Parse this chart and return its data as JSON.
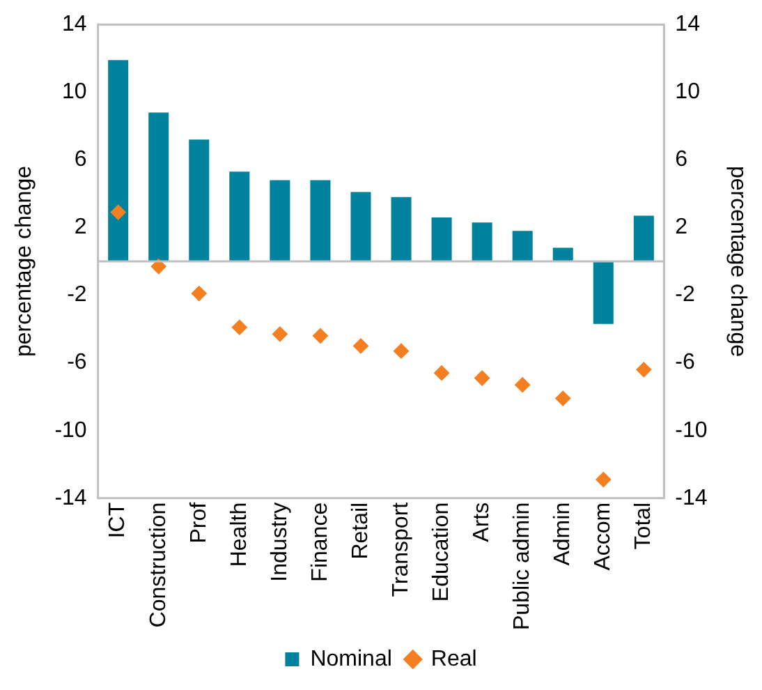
{
  "chart_data": {
    "type": "bar",
    "ylabel": "percentage change",
    "y2label": "percentage change",
    "categories": [
      "ICT",
      "Construction",
      "Prof",
      "Health",
      "Industry",
      "Finance",
      "Retail",
      "Transport",
      "Education",
      "Arts",
      "Public admin",
      "Admin",
      "Accom",
      "Total"
    ],
    "series": [
      {
        "name": "Nominal",
        "color": "#00829e",
        "values": [
          11.9,
          8.8,
          7.2,
          5.3,
          4.8,
          4.8,
          4.1,
          3.8,
          2.6,
          2.3,
          1.8,
          0.8,
          -3.7,
          2.7
        ]
      },
      {
        "name": "Real",
        "type": "scatter",
        "color": "#f47f20",
        "marker": "diamond",
        "values": [
          2.9,
          -0.3,
          -1.9,
          -3.9,
          -4.3,
          -4.4,
          -5.0,
          -5.3,
          -6.6,
          -6.9,
          -7.3,
          -8.1,
          -12.9,
          -6.4
        ]
      }
    ],
    "ylim": [
      -14,
      14
    ],
    "yticks": [
      -14,
      -10,
      -6,
      -2,
      2,
      6,
      10,
      14
    ],
    "y2lim": [
      -14,
      14
    ],
    "y2ticks": [
      -14,
      -10,
      -6,
      -2,
      2,
      6,
      10,
      14
    ],
    "grid": false,
    "legend": "bottom"
  }
}
